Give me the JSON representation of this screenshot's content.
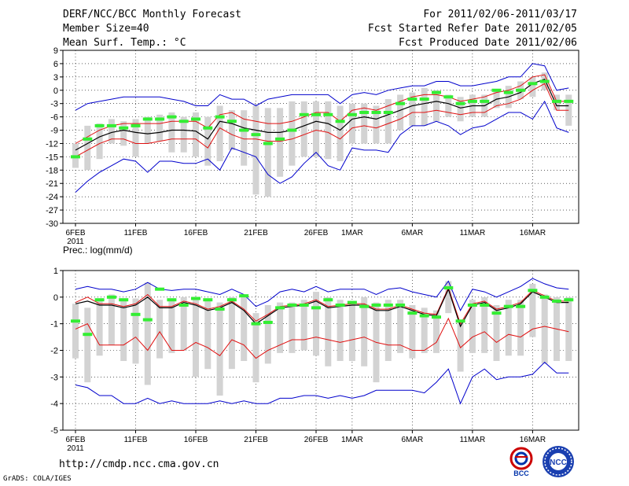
{
  "header": {
    "title": "DERF/NCC/BCC Monthly Forecast",
    "member_size": "Member Size=40",
    "variable": "Mean Surf. Temp.: °C",
    "period": "For 2011/02/06-2011/03/17",
    "started": "Fcst Started Refer Date 2011/02/05",
    "produced": "Fcst Produced Date 2011/02/06"
  },
  "footer": {
    "url": "http://cmdp.ncc.cma.gov.cn",
    "grads": "GrADS: COLA/IGES",
    "logo_left_text": "BCC",
    "logo_right_text": "NCC"
  },
  "colors": {
    "box": "#d3d3d3",
    "green": "#33ee33",
    "red": "#e01010",
    "blue": "#0000cc",
    "mean": "#000000"
  },
  "chart_data": [
    {
      "type": "box-line",
      "title": "Mean Surf. Temp.: °C",
      "ylim": [
        -30,
        9
      ],
      "yticks": [
        9,
        6,
        3,
        0,
        -3,
        -6,
        -9,
        -12,
        -15,
        -18,
        -21,
        -24,
        -27,
        -30
      ],
      "xticks": [
        {
          "day": 0,
          "label": "6FEB",
          "sub": "2011"
        },
        {
          "day": 5,
          "label": "11FEB"
        },
        {
          "day": 10,
          "label": "16FEB"
        },
        {
          "day": 15,
          "label": "21FEB"
        },
        {
          "day": 20,
          "label": "26FEB"
        },
        {
          "day": 23,
          "label": "1MAR"
        },
        {
          "day": 28,
          "label": "6MAR"
        },
        {
          "day": 33,
          "label": "11MAR"
        },
        {
          "day": 38,
          "label": "16MAR"
        }
      ],
      "series": {
        "mean": [
          -13.5,
          -12,
          -10.5,
          -9.5,
          -9,
          -9.5,
          -9.8,
          -9.5,
          -9,
          -9,
          -9.2,
          -11,
          -7,
          -7.5,
          -8.5,
          -9,
          -9.5,
          -9.5,
          -9,
          -8,
          -7,
          -7.5,
          -9,
          -6.5,
          -6,
          -6.5,
          -5.5,
          -4.5,
          -3.5,
          -3,
          -2.5,
          -3,
          -4,
          -3.5,
          -3.5,
          -2,
          -1.5,
          -0.5,
          1.5,
          2.5,
          -3.5,
          -3.5
        ],
        "upper_red": [
          -12,
          -10.5,
          -9,
          -8,
          -7.5,
          -7.5,
          -7.5,
          -7.5,
          -7,
          -7,
          -7,
          -8.5,
          -5.5,
          -5,
          -6.5,
          -7,
          -7.5,
          -7.5,
          -7,
          -6,
          -5,
          -5,
          -7,
          -4.5,
          -4,
          -4.5,
          -3.5,
          -2.5,
          -1.5,
          -1,
          -1,
          -1.5,
          -2.5,
          -2,
          -1.5,
          -0.5,
          0,
          1,
          3,
          3.5,
          -2.5,
          -2.5
        ],
        "lower_red": [
          -15,
          -13.5,
          -12,
          -11,
          -11,
          -12,
          -12,
          -11.5,
          -11,
          -11,
          -11,
          -13,
          -8.5,
          -10,
          -11,
          -11,
          -11.5,
          -11.5,
          -11,
          -10,
          -9,
          -9.5,
          -11,
          -8.5,
          -8,
          -8.5,
          -7.5,
          -6.5,
          -5,
          -5,
          -4.5,
          -5,
          -5.5,
          -5,
          -5,
          -3.5,
          -3,
          -2,
          0,
          1.5,
          -4.5,
          -4.5
        ],
        "upper_blue": [
          -4.5,
          -3,
          -2.5,
          -2,
          -1.5,
          -1.5,
          -1.5,
          -1.5,
          -2,
          -2.5,
          -3.5,
          -3.5,
          -1,
          -2,
          -2,
          -3.5,
          -2,
          -1.5,
          -1,
          -1,
          -1,
          -1,
          -3,
          -1,
          -0.5,
          -1,
          0,
          0.5,
          1,
          1,
          2,
          2,
          1,
          1,
          1.5,
          2,
          3,
          3,
          6,
          5.5,
          0,
          0.5
        ],
        "lower_blue": [
          -23,
          -20.5,
          -18.5,
          -17,
          -15.5,
          -16,
          -18.5,
          -16,
          -16,
          -16.5,
          -16.5,
          -15.5,
          -18,
          -13,
          -14,
          -15,
          -19,
          -21,
          -19.5,
          -16.5,
          -14,
          -17,
          -18,
          -13,
          -13.5,
          -13.5,
          -14,
          -10,
          -8,
          -8,
          -7,
          -8,
          -10,
          -8.5,
          -8,
          -6.5,
          -5,
          -5,
          -6.5,
          -2.5,
          -8.5,
          -9.5
        ],
        "green": [
          -15,
          -11,
          -8,
          -8,
          -8.5,
          -8,
          -6.5,
          -6.5,
          -6,
          -7,
          -6.5,
          -8.5,
          -6,
          -7,
          -9,
          -10,
          -12,
          -11,
          -9,
          -5.5,
          -5.5,
          -5.5,
          -7,
          -5.5,
          -5,
          -5,
          -5,
          -3,
          -2,
          -2,
          -0.5,
          -1.5,
          -3,
          -2.5,
          -2.5,
          0,
          -0.5,
          0,
          1.5,
          2,
          -2.5,
          -2.5
        ],
        "box_top": [
          -12,
          -8,
          -7.5,
          -6.5,
          -7,
          -6.5,
          -6,
          -5.5,
          -5,
          -6,
          -5,
          -6,
          -3.5,
          -4.5,
          -4.5,
          -3.5,
          -4,
          -4,
          -2.5,
          -2.5,
          -2.5,
          -2.5,
          -3.5,
          -3,
          -3,
          -3.5,
          -2,
          -1,
          -0.5,
          0.5,
          0,
          -1,
          -1.5,
          -1,
          -1,
          0,
          1,
          2,
          3,
          4,
          -1,
          -1
        ],
        "box_bot": [
          -17.5,
          -18,
          -15.5,
          -12,
          -12.5,
          -15,
          -12,
          -11.5,
          -14,
          -14,
          -15,
          -17,
          -16,
          -13.5,
          -17,
          -23.5,
          -24,
          -19.5,
          -17,
          -15,
          -15,
          -15.5,
          -16,
          -12,
          -12,
          -12,
          -12,
          -9,
          -8,
          -8,
          -7,
          -6,
          -7,
          -6,
          -6,
          -4,
          -4,
          -2,
          -1.5,
          0,
          -4.5,
          -8
        ]
      }
    },
    {
      "type": "box-line",
      "title": "Prec.: log(mm/d)",
      "ylim": [
        -5,
        1
      ],
      "yticks": [
        1,
        0,
        -1,
        -2,
        -3,
        -4,
        -5
      ],
      "xticks": [
        {
          "day": 0,
          "label": "6FEB",
          "sub": "2011"
        },
        {
          "day": 5,
          "label": "11FEB"
        },
        {
          "day": 10,
          "label": "16FEB"
        },
        {
          "day": 15,
          "label": "21FEB"
        },
        {
          "day": 20,
          "label": "26FEB"
        },
        {
          "day": 23,
          "label": "1MAR"
        },
        {
          "day": 28,
          "label": "6MAR"
        },
        {
          "day": 33,
          "label": "11MAR"
        },
        {
          "day": 38,
          "label": "16MAR"
        }
      ],
      "series": {
        "mean": [
          -0.25,
          -0.15,
          -0.3,
          -0.3,
          -0.4,
          -0.3,
          0,
          -0.4,
          -0.4,
          -0.2,
          -0.3,
          -0.5,
          -0.4,
          -0.2,
          -0.5,
          -1,
          -0.7,
          -0.4,
          -0.35,
          -0.3,
          -0.15,
          -0.4,
          -0.35,
          -0.3,
          -0.3,
          -0.5,
          -0.5,
          -0.35,
          -0.5,
          -0.65,
          -0.7,
          0.3,
          -1.1,
          -0.3,
          -0.2,
          -0.5,
          -0.4,
          -0.25,
          0.2,
          0,
          -0.2,
          -0.2
        ],
        "upper_red": [
          -0.2,
          0,
          -0.25,
          -0.25,
          -0.35,
          -0.25,
          0.1,
          -0.35,
          -0.35,
          -0.15,
          -0.25,
          -0.45,
          -0.35,
          -0.15,
          -0.45,
          -0.9,
          -0.65,
          -0.35,
          -0.3,
          -0.25,
          -0.1,
          -0.35,
          -0.3,
          -0.25,
          -0.25,
          -0.45,
          -0.45,
          -0.3,
          -0.45,
          -0.6,
          -0.65,
          0.35,
          -1,
          -0.25,
          -0.15,
          -0.45,
          -0.35,
          -0.2,
          0.25,
          0.05,
          -0.15,
          -0.15
        ],
        "lower_red": [
          -1.2,
          -1,
          -1.8,
          -1.8,
          -1.8,
          -1.5,
          -2,
          -1.3,
          -2,
          -2,
          -1.7,
          -1.9,
          -2.2,
          -1.6,
          -1.8,
          -2.3,
          -2,
          -1.8,
          -1.6,
          -1.6,
          -1.5,
          -1.6,
          -1.7,
          -1.6,
          -1.5,
          -1.7,
          -1.8,
          -1.8,
          -2,
          -2,
          -1.7,
          -0.8,
          -1.9,
          -1.5,
          -1.3,
          -1.7,
          -1.4,
          -1.5,
          -1.2,
          -1.1,
          -1.2,
          -1.3
        ],
        "upper_blue": [
          0.3,
          0.4,
          0.3,
          0.3,
          0.2,
          0.3,
          0.55,
          0.3,
          0.25,
          0.3,
          0.3,
          0.2,
          0.1,
          0.3,
          0.1,
          -0.35,
          -0.15,
          0.2,
          0.3,
          0.2,
          0.4,
          0.2,
          0.3,
          0.3,
          0.3,
          0.1,
          0.3,
          0.35,
          0.2,
          0.1,
          0,
          0.6,
          -0.5,
          0.3,
          0.2,
          0,
          0.2,
          0.4,
          0.7,
          0.5,
          0.35,
          0.3
        ],
        "lower_blue": [
          -3.3,
          -3.4,
          -3.7,
          -3.7,
          -4,
          -4,
          -3.8,
          -4,
          -3.9,
          -4,
          -4,
          -4,
          -3.9,
          -4,
          -3.9,
          -4,
          -4,
          -3.8,
          -3.8,
          -3.7,
          -3.7,
          -3.8,
          -3.7,
          -3.8,
          -3.7,
          -3.5,
          -3.5,
          -3.5,
          -3.5,
          -3.6,
          -3.2,
          -2.7,
          -4,
          -3,
          -2.7,
          -3.1,
          -3,
          -3,
          -2.9,
          -2.45,
          -2.85,
          -2.85
        ],
        "green": [
          -0.9,
          -1.4,
          -0.1,
          0,
          -0.1,
          -0.65,
          -0.85,
          0.3,
          -0.1,
          -0.3,
          -0.05,
          -0.1,
          -0.45,
          -0.1,
          0.05,
          -1.0,
          -0.95,
          -0.4,
          -0.3,
          -0.3,
          -0.4,
          -0.1,
          -0.3,
          -0.2,
          -0.35,
          -0.3,
          -0.3,
          -0.3,
          -0.6,
          -0.7,
          -0.75,
          0.35,
          -0.9,
          -0.3,
          -0.3,
          -0.6,
          -0.35,
          -0.35,
          0.25,
          0,
          -0.15,
          -0.1
        ],
        "box_top": [
          -0.25,
          -0.4,
          -0.05,
          0.1,
          -0.1,
          -0.05,
          0.55,
          -0.1,
          -0.05,
          0,
          0,
          -0.1,
          -0.2,
          0,
          0.1,
          -0.6,
          -0.3,
          -0.2,
          -0.2,
          -0.1,
          0.2,
          0,
          -0.1,
          -0.15,
          0,
          -0.2,
          -0.1,
          -0.1,
          -0.3,
          -0.4,
          -0.5,
          0.6,
          -0.9,
          -0.1,
          0,
          -0.3,
          -0.1,
          -0.1,
          0.5,
          0.1,
          0,
          0
        ],
        "box_bot": [
          -2.3,
          -3.2,
          -2.2,
          -1.8,
          -2.4,
          -2.5,
          -3.3,
          -2.3,
          -2.1,
          -2,
          -3,
          -2.7,
          -3.7,
          -2.7,
          -2.4,
          -3.2,
          -2.5,
          -2.1,
          -2.1,
          -2,
          -2.2,
          -2.6,
          -2.4,
          -2.4,
          -2.6,
          -3.2,
          -2.4,
          -2.1,
          -2.3,
          -2.1,
          -2.1,
          -0.6,
          -2.8,
          -2.1,
          -2.1,
          -2.4,
          -2.2,
          -2.2,
          -1.5,
          -2.5,
          -2.4,
          -2.4
        ]
      }
    }
  ]
}
